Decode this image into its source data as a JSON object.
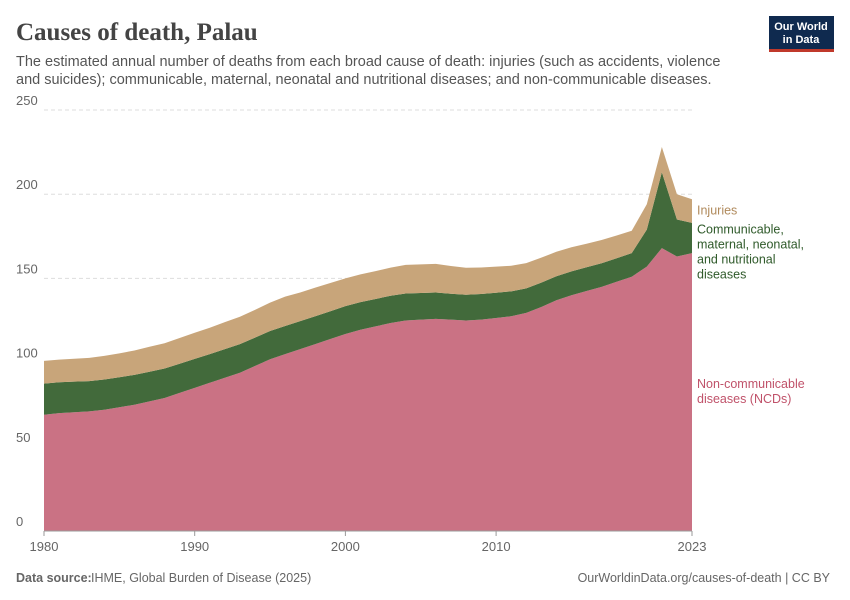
{
  "chart_data": {
    "type": "area",
    "title": "Causes of death, Palau",
    "subtitle": "The estimated annual number of deaths from each broad cause of death: injuries (such as accidents, violence and suicides); communicable, maternal, neonatal and nutritional diseases; and non-communicable diseases.",
    "logo": [
      "Our World",
      "in Data"
    ],
    "source_label": "Data source:",
    "source": "IHME, Global Burden of Disease (2025)",
    "url": "OurWorldinData.org/causes-of-death | CC BY",
    "stacked": true,
    "grid": true,
    "x": [
      1980,
      1981,
      1982,
      1983,
      1984,
      1985,
      1986,
      1987,
      1988,
      1989,
      1990,
      1991,
      1992,
      1993,
      1994,
      1995,
      1996,
      1997,
      1998,
      1999,
      2000,
      2001,
      2002,
      2003,
      2004,
      2005,
      2006,
      2007,
      2008,
      2009,
      2010,
      2011,
      2012,
      2013,
      2014,
      2015,
      2016,
      2017,
      2018,
      2019,
      2020,
      2021,
      2022,
      2023
    ],
    "xlim": [
      1980,
      2023
    ],
    "xticks": [
      1980,
      1990,
      2000,
      2010,
      2023
    ],
    "ylim": [
      0,
      250
    ],
    "yticks": [
      0,
      50,
      100,
      150,
      200,
      250
    ],
    "series": [
      {
        "name": "Non-communicable diseases (NCDs)",
        "color": "#ca7284",
        "values": [
          69,
          70,
          70.5,
          71,
          72,
          73.5,
          75,
          77,
          79,
          82,
          85,
          88,
          91,
          94,
          98,
          102,
          105,
          108,
          111,
          114,
          117,
          119.5,
          121.5,
          123.5,
          125,
          125.5,
          126,
          125.5,
          125,
          125.5,
          126.5,
          127.5,
          129.5,
          133,
          137,
          140,
          142.5,
          145,
          148,
          151,
          157,
          168,
          163,
          165
        ]
      },
      {
        "name": "Communicable, maternal, neonatal, and nutritional diseases",
        "color": "#426a3b",
        "values": [
          18.5,
          18.3,
          18.2,
          18,
          18,
          17.8,
          17.7,
          17.6,
          17.5,
          17.3,
          17.2,
          17,
          17,
          17,
          16.8,
          16.8,
          16.7,
          16.6,
          16.5,
          16.5,
          16.5,
          16.4,
          16.3,
          16.2,
          16,
          15.8,
          15.6,
          15.4,
          15.3,
          15.2,
          15,
          14.8,
          14.6,
          14.5,
          14.3,
          14.2,
          14.1,
          14,
          14,
          14,
          22,
          45,
          22,
          18
        ]
      },
      {
        "name": "Injuries",
        "color": "#c8a57a",
        "values": [
          13.5,
          13.5,
          13.6,
          13.8,
          14,
          14.2,
          14.5,
          14.8,
          15,
          15.3,
          15.5,
          15.7,
          16,
          16.2,
          16.5,
          16.8,
          17.5,
          17,
          17,
          16.8,
          16.5,
          16.5,
          16.5,
          16.7,
          17,
          17,
          17,
          16.5,
          16,
          15.8,
          15.5,
          15.2,
          15,
          14.8,
          14.5,
          14.3,
          14,
          13.8,
          13.5,
          13.3,
          15,
          15,
          15,
          14
        ]
      }
    ]
  }
}
